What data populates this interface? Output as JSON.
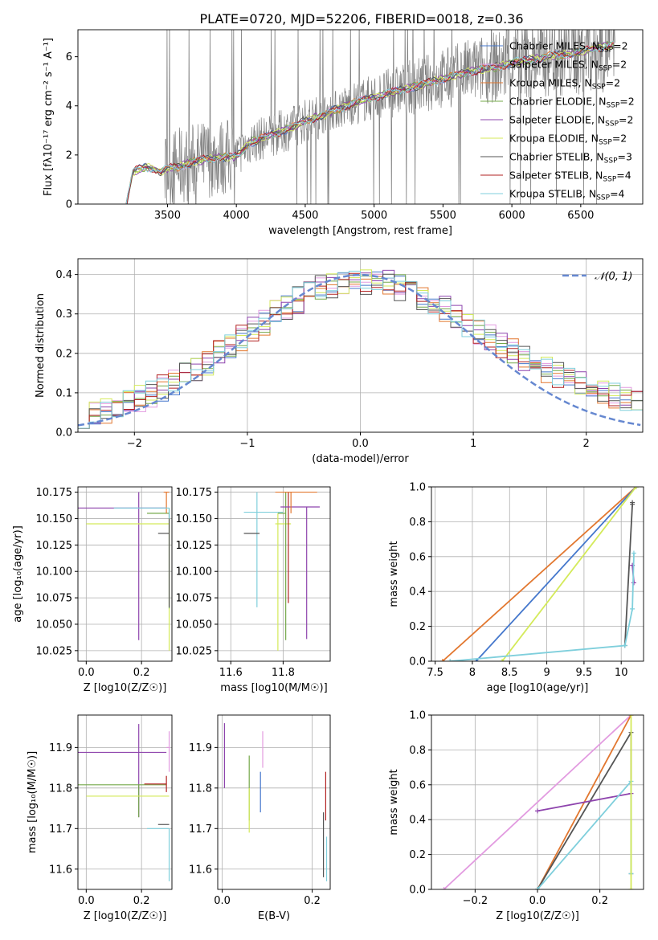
{
  "title": "PLATE=0720, MJD=52206, FIBERID=0018, z=0.36",
  "colors": {
    "chabrier_miles": "#4477cc",
    "salpeter_miles": "#e29be0",
    "kroupa_miles": "#e2772f",
    "chabrier_elodie": "#74a84a",
    "salpeter_elodie": "#8e44ad",
    "kroupa_elodie": "#d4ea5a",
    "chabrier_stelib": "#555555",
    "salpeter_stelib": "#b22222",
    "kroupa_stelib": "#7fcfdc",
    "data": "#808080",
    "normal": "#6688d0",
    "grid": "#b0b0b0"
  },
  "chart_data": [
    {
      "id": "spectrum",
      "type": "line",
      "xlabel": "wavelength [Angstrom, rest frame]",
      "ylabel": "Flux [f_λ 10⁻¹⁷ erg cm⁻² s⁻¹ A⁻¹]",
      "xlim": [
        2850,
        6950
      ],
      "ylim": [
        0,
        7.1
      ],
      "xticks": [
        3500,
        4000,
        4500,
        5000,
        5500,
        6000,
        6500
      ],
      "yticks": [
        0,
        2,
        4,
        6
      ],
      "grid": false,
      "legend_position": "top-right",
      "legend": [
        "Chabrier MILES, N_SSP=2",
        "Salpeter MILES, N_SSP=2",
        "Kroupa MILES, N_SSP=2",
        "Chabrier ELODIE, N_SSP=2",
        "Salpeter ELODIE, N_SSP=2",
        "Kroupa ELODIE, N_SSP=2",
        "Chabrier STELIB, N_SSP=3",
        "Salpeter STELIB, N_SSP=4",
        "Kroupa STELIB, N_SSP=4"
      ],
      "model_curve": {
        "x": [
          3200,
          3250,
          3300,
          3350,
          3400,
          3450,
          3500,
          3600,
          3700,
          3800,
          3900,
          4000,
          4100,
          4200,
          4300,
          4400,
          4500,
          4600,
          4700,
          4800,
          4900,
          5000,
          5100,
          5200,
          5300,
          5400,
          5500,
          5600,
          5700,
          5800,
          5900,
          6000,
          6100,
          6200,
          6300,
          6400,
          6500,
          6600,
          6700,
          6750
        ],
        "y": [
          0.0,
          1.3,
          1.45,
          1.5,
          1.45,
          1.3,
          1.45,
          1.55,
          1.75,
          1.85,
          1.9,
          1.95,
          2.5,
          2.7,
          2.9,
          3.1,
          3.4,
          3.55,
          3.8,
          4.0,
          4.2,
          4.35,
          4.5,
          4.65,
          4.8,
          4.95,
          5.1,
          5.25,
          5.4,
          5.5,
          5.6,
          5.75,
          5.85,
          5.95,
          6.05,
          6.1,
          6.2,
          6.35,
          6.45,
          6.5
        ]
      }
    },
    {
      "id": "residual-hist",
      "type": "line",
      "xlabel": "(data-model)/error",
      "ylabel": "Normed distribution",
      "xlim": [
        -2.5,
        2.5
      ],
      "ylim": [
        0,
        0.44
      ],
      "xticks": [
        -2,
        -1,
        0,
        1,
        2
      ],
      "yticks": [
        0.0,
        0.1,
        0.2,
        0.3,
        0.4
      ],
      "grid": true,
      "legend_position": "top-right",
      "legend": [
        "𝒩(0, 1)"
      ],
      "normal_curve": {
        "mean": 0,
        "sigma": 1
      }
    },
    {
      "id": "age-vs-z",
      "type": "scatter",
      "xlabel": "Z [log10(Z/Z☉)]",
      "ylabel": "age [log10(age/yr)]",
      "xlim": [
        -0.03,
        0.31
      ],
      "ylim": [
        10.015,
        10.18
      ],
      "xticks": [
        0.0,
        0.2
      ],
      "yticks": [
        10.025,
        10.05,
        10.075,
        10.1,
        10.125,
        10.15,
        10.175
      ],
      "grid": true,
      "points": [
        {
          "s": "salpeter_elodie",
          "x": 0.19,
          "y": 10.16,
          "xe": [
            -0.27,
            0.1
          ],
          "ye": [
            -0.125,
            0.015
          ]
        },
        {
          "s": "kroupa_elodie",
          "x": 0.3,
          "y": 10.145,
          "xe": [
            -0.3,
            0.0
          ],
          "ye": [
            -0.12,
            0.005
          ]
        },
        {
          "s": "chabrier_elodie",
          "x": 0.3,
          "y": 10.155,
          "xe": [
            -0.08,
            0.0
          ],
          "ye": [
            -0.09,
            0.005
          ]
        },
        {
          "s": "chabrier_stelib",
          "x": 0.3,
          "y": 10.136,
          "xe": [
            -0.04,
            0.0
          ],
          "ye": [
            -0.07,
            0.02
          ]
        },
        {
          "s": "kroupa_miles",
          "x": 0.29,
          "y": 10.175,
          "xe": [
            -0.01,
            0.01
          ],
          "ye": [
            -0.02,
            0.0
          ]
        },
        {
          "s": "kroupa_stelib",
          "x": 0.3,
          "y": 10.16,
          "xe": [
            -0.2,
            0.0
          ],
          "ye": [
            -0.01,
            0.0
          ]
        }
      ]
    },
    {
      "id": "age-vs-mass",
      "type": "scatter",
      "xlabel": "mass [log10(M/M☉)]",
      "ylabel": "",
      "xlim": [
        11.55,
        11.98
      ],
      "ylim": [
        10.015,
        10.18
      ],
      "xticks": [
        11.6,
        11.8
      ],
      "yticks": [
        10.025,
        10.05,
        10.075,
        10.1,
        10.125,
        10.15,
        10.175
      ],
      "grid": true,
      "points": [
        {
          "s": "kroupa_stelib",
          "x": 11.7,
          "y": 10.156,
          "xe": [
            -0.05,
            0.1
          ],
          "ye": [
            -0.09,
            0.019
          ]
        },
        {
          "s": "kroupa_elodie",
          "x": 11.78,
          "y": 10.145,
          "xe": [
            -0.01,
            0.05
          ],
          "ye": [
            -0.12,
            0.01
          ]
        },
        {
          "s": "chabrier_stelib",
          "x": 11.71,
          "y": 10.136,
          "xe": [
            -0.06,
            0.0
          ],
          "ye": [
            0.0,
            0.0
          ]
        },
        {
          "s": "chabrier_elodie",
          "x": 11.81,
          "y": 10.155,
          "xe": [
            -0.03,
            0.0
          ],
          "ye": [
            -0.12,
            0.02
          ]
        },
        {
          "s": "salpeter_stelib",
          "x": 11.82,
          "y": 10.1,
          "xe": [
            0.0,
            0.0
          ],
          "ye": [
            -0.03,
            0.075
          ]
        },
        {
          "s": "salpeter_elodie",
          "x": 11.89,
          "y": 10.161,
          "xe": [
            -0.1,
            0.05
          ],
          "ye": [
            -0.125,
            0.0
          ]
        },
        {
          "s": "kroupa_miles",
          "x": 11.83,
          "y": 10.175,
          "xe": [
            -0.06,
            0.1
          ],
          "ye": [
            -0.02,
            0.0
          ]
        }
      ]
    },
    {
      "id": "weight-vs-age",
      "type": "line",
      "xlabel": "age [log10(age/yr)]",
      "ylabel": "mass weight",
      "xlim": [
        7.45,
        10.3
      ],
      "ylim": [
        0,
        1
      ],
      "xticks": [
        7.5,
        8.0,
        8.5,
        9.0,
        9.5,
        10.0
      ],
      "yticks": [
        0.0,
        0.2,
        0.4,
        0.6,
        0.8,
        1.0
      ],
      "grid": true,
      "series": [
        {
          "s": "kroupa_miles",
          "x": [
            7.6,
            10.2
          ],
          "y": [
            0.0,
            1.0
          ]
        },
        {
          "s": "chabrier_miles",
          "x": [
            8.05,
            10.2
          ],
          "y": [
            0.0,
            1.0
          ]
        },
        {
          "s": "kroupa_elodie",
          "x": [
            8.4,
            10.2
          ],
          "y": [
            0.0,
            1.0
          ]
        },
        {
          "s": "chabrier_stelib",
          "x": [
            10.05,
            10.15,
            10.15
          ],
          "y": [
            0.09,
            0.9,
            0.91
          ]
        },
        {
          "s": "salpeter_elodie",
          "x": [
            10.15,
            10.17
          ],
          "y": [
            0.55,
            0.45
          ]
        },
        {
          "s": "kroupa_stelib",
          "x": [
            7.7,
            10.05,
            10.15,
            10.17
          ],
          "y": [
            0.0,
            0.09,
            0.3,
            0.62
          ]
        }
      ]
    },
    {
      "id": "mass-vs-z",
      "type": "scatter",
      "xlabel": "Z [log10(Z/Z☉)]",
      "ylabel": "mass [log10(M/M☉)]",
      "xlim": [
        -0.03,
        0.31
      ],
      "ylim": [
        11.55,
        11.98
      ],
      "xticks": [
        0.0,
        0.2
      ],
      "yticks": [
        11.6,
        11.7,
        11.8,
        11.9
      ],
      "grid": true,
      "points": [
        {
          "s": "salpeter_elodie",
          "x": 0.19,
          "y": 11.888,
          "xe": [
            -0.3,
            0.1
          ],
          "ye": [
            -0.16,
            0.07
          ]
        },
        {
          "s": "chabrier_elodie",
          "x": 0.19,
          "y": 11.808,
          "xe": [
            -0.3,
            0.1
          ],
          "ye": [
            -0.08,
            0.0
          ]
        },
        {
          "s": "kroupa_elodie",
          "x": 0.3,
          "y": 11.78,
          "xe": [
            -0.3,
            0.0
          ],
          "ye": [
            0.0,
            0.0
          ]
        },
        {
          "s": "salpeter_stelib",
          "x": 0.29,
          "y": 11.81,
          "xe": [
            -0.08,
            0.0
          ],
          "ye": [
            -0.02,
            0.02
          ]
        },
        {
          "s": "chabrier_stelib",
          "x": 0.3,
          "y": 11.71,
          "xe": [
            -0.04,
            0.0
          ],
          "ye": [
            0.0,
            0.0
          ]
        },
        {
          "s": "kroupa_stelib",
          "x": 0.3,
          "y": 11.7,
          "xe": [
            -0.08,
            0.0
          ],
          "ye": [
            -0.13,
            0.0
          ]
        },
        {
          "s": "salpeter_miles",
          "x": 0.3,
          "y": 11.9,
          "xe": [
            -0.01,
            0.0
          ],
          "ye": [
            -0.06,
            0.04
          ]
        }
      ]
    },
    {
      "id": "mass-vs-ebv",
      "type": "scatter",
      "xlabel": "E(B-V)",
      "ylabel": "",
      "xlim": [
        -0.01,
        0.24
      ],
      "ylim": [
        11.55,
        11.98
      ],
      "xticks": [
        0.0,
        0.2
      ],
      "yticks": [
        11.6,
        11.7,
        11.8,
        11.9
      ],
      "grid": true,
      "points": [
        {
          "s": "salpeter_elodie",
          "x": 0.005,
          "y": 11.88,
          "xe": [
            0,
            0
          ],
          "ye": [
            -0.08,
            0.08
          ]
        },
        {
          "s": "chabrier_elodie",
          "x": 0.06,
          "y": 11.81,
          "xe": [
            0,
            0
          ],
          "ye": [
            -0.09,
            0.07
          ]
        },
        {
          "s": "kroupa_elodie",
          "x": 0.06,
          "y": 11.75,
          "xe": [
            0,
            0
          ],
          "ye": [
            -0.06,
            0.05
          ]
        },
        {
          "s": "chabrier_miles",
          "x": 0.085,
          "y": 11.79,
          "xe": [
            0,
            0
          ],
          "ye": [
            -0.05,
            0.05
          ]
        },
        {
          "s": "salpeter_miles",
          "x": 0.09,
          "y": 11.9,
          "xe": [
            0,
            0
          ],
          "ye": [
            -0.05,
            0.04
          ]
        },
        {
          "s": "chabrier_stelib",
          "x": 0.225,
          "y": 11.66,
          "xe": [
            0,
            0
          ],
          "ye": [
            -0.08,
            0.08
          ]
        },
        {
          "s": "salpeter_stelib",
          "x": 0.23,
          "y": 11.78,
          "xe": [
            0,
            0
          ],
          "ye": [
            -0.06,
            0.06
          ]
        },
        {
          "s": "kroupa_stelib",
          "x": 0.232,
          "y": 11.62,
          "xe": [
            0,
            0
          ],
          "ye": [
            -0.05,
            0.06
          ]
        }
      ]
    },
    {
      "id": "weight-vs-z",
      "type": "line",
      "xlabel": "Z [log10(Z/Z☉)]",
      "ylabel": "mass weight",
      "xlim": [
        -0.34,
        0.34
      ],
      "ylim": [
        0,
        1
      ],
      "xticks": [
        -0.2,
        0.0,
        0.2
      ],
      "yticks": [
        0.0,
        0.2,
        0.4,
        0.6,
        0.8,
        1.0
      ],
      "grid": true,
      "series": [
        {
          "s": "salpeter_miles",
          "x": [
            -0.3,
            0.3
          ],
          "y": [
            0.0,
            1.0
          ]
        },
        {
          "s": "kroupa_miles",
          "x": [
            0.0,
            0.3
          ],
          "y": [
            0.0,
            1.0
          ]
        },
        {
          "s": "chabrier_stelib",
          "x": [
            0.0,
            0.3,
            0.3
          ],
          "y": [
            0.0,
            0.9,
            0.09
          ]
        },
        {
          "s": "salpeter_elodie",
          "x": [
            0.0,
            0.3
          ],
          "y": [
            0.45,
            0.55
          ]
        },
        {
          "s": "kroupa_stelib",
          "x": [
            0.0,
            0.3,
            0.3
          ],
          "y": [
            0.0,
            0.62,
            0.09
          ]
        },
        {
          "s": "kroupa_elodie",
          "x": [
            0.3,
            0.3
          ],
          "y": [
            0.0,
            1.0
          ]
        }
      ]
    }
  ]
}
